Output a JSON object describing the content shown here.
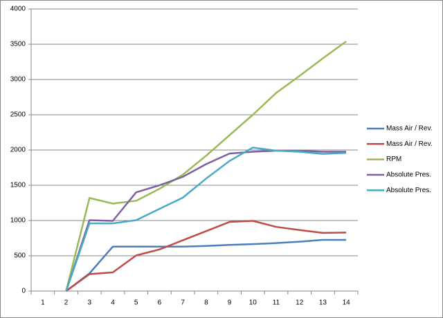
{
  "chart_data": {
    "type": "line",
    "categories": [
      "1",
      "2",
      "3",
      "4",
      "5",
      "6",
      "7",
      "8",
      "9",
      "10",
      "11",
      "12",
      "13",
      "14"
    ],
    "series": [
      {
        "name": "Mass Air / Rev.",
        "color": "#4a7ebb",
        "values": [
          null,
          0,
          250,
          630,
          630,
          630,
          630,
          640,
          655,
          665,
          680,
          700,
          725,
          725
        ]
      },
      {
        "name": "Mass Air / Rev.",
        "color": "#be4b48",
        "values": [
          null,
          0,
          240,
          265,
          505,
          590,
          720,
          850,
          980,
          995,
          910,
          865,
          825,
          830
        ]
      },
      {
        "name": "RPM",
        "color": "#98b954",
        "values": [
          null,
          0,
          1320,
          1240,
          1280,
          1450,
          1650,
          1920,
          2210,
          2500,
          2810,
          3050,
          3300,
          3540
        ]
      },
      {
        "name": "Absolute Pres.",
        "color": "#7d60a0",
        "values": [
          null,
          0,
          1005,
          995,
          1400,
          1500,
          1620,
          1800,
          1950,
          1975,
          1990,
          1990,
          1975,
          1975
        ]
      },
      {
        "name": "Absolute Pres.",
        "color": "#46aac5",
        "values": [
          null,
          0,
          960,
          960,
          1005,
          1165,
          1325,
          1595,
          1845,
          2035,
          1990,
          1975,
          1945,
          1960
        ]
      }
    ],
    "ylim": [
      0,
      4000
    ],
    "yticks": [
      0,
      500,
      1000,
      1500,
      2000,
      2500,
      3000,
      3500,
      4000
    ],
    "grid": true,
    "legend": "right"
  }
}
